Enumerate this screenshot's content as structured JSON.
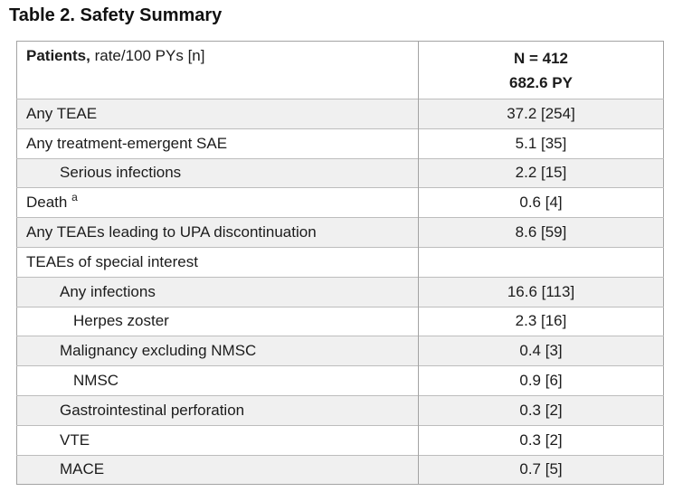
{
  "title": "Table 2. Safety Summary",
  "table": {
    "header": {
      "col1_bold": "Patients,",
      "col1_rest": " rate/100 PYs [n]",
      "col2_line1": "N = 412",
      "col2_line2": "682.6 PY"
    },
    "rows": [
      {
        "label": "Any TEAE",
        "sup": "",
        "value": "37.2 [254]",
        "indent": 0,
        "shaded": true
      },
      {
        "label": "Any treatment-emergent SAE",
        "sup": "",
        "value": "5.1 [35]",
        "indent": 0,
        "shaded": false
      },
      {
        "label": "Serious infections",
        "sup": "",
        "value": "2.2 [15]",
        "indent": 1,
        "shaded": true
      },
      {
        "label": "Death",
        "sup": "a",
        "value": "0.6 [4]",
        "indent": 0,
        "shaded": false
      },
      {
        "label": "Any TEAEs leading to UPA discontinuation",
        "sup": "",
        "value": "8.6 [59]",
        "indent": 0,
        "shaded": true
      },
      {
        "label": "TEAEs of special interest",
        "sup": "",
        "value": "",
        "indent": 0,
        "shaded": false
      },
      {
        "label": "Any infections",
        "sup": "",
        "value": "16.6 [113]",
        "indent": 1,
        "shaded": true
      },
      {
        "label": "Herpes zoster",
        "sup": "",
        "value": "2.3 [16]",
        "indent": 2,
        "shaded": false
      },
      {
        "label": "Malignancy excluding NMSC",
        "sup": "",
        "value": "0.4 [3]",
        "indent": 1,
        "shaded": true
      },
      {
        "label": "NMSC",
        "sup": "",
        "value": "0.9 [6]",
        "indent": 2,
        "shaded": false
      },
      {
        "label": "Gastrointestinal perforation",
        "sup": "",
        "value": "0.3 [2]",
        "indent": 1,
        "shaded": true
      },
      {
        "label": "VTE",
        "sup": "",
        "value": "0.3 [2]",
        "indent": 1,
        "shaded": false
      },
      {
        "label": "MACE",
        "sup": "",
        "value": "0.7 [5]",
        "indent": 1,
        "shaded": true
      }
    ]
  },
  "colors": {
    "row_stripe": "#f0f0f0",
    "border_outer": "#a3a3a3",
    "border_row": "#bdbdbd",
    "text": "#1c1c1c"
  }
}
